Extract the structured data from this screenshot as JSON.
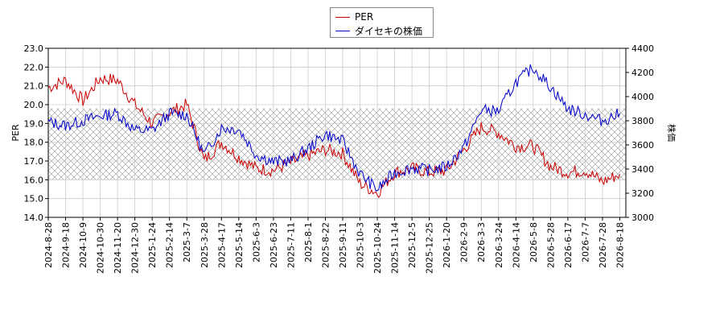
{
  "chart_data": {
    "type": "line",
    "title": "",
    "legend": {
      "placement": "top-center",
      "entries": [
        "PER",
        "ダイセキの株価"
      ]
    },
    "ylabel_left": "PER",
    "ylabel_right": "株価",
    "ylim_left": [
      14.0,
      23.0
    ],
    "ylim_right": [
      3000,
      4400
    ],
    "yticks_left": [
      "14.0",
      "15.0",
      "16.0",
      "17.0",
      "18.0",
      "19.0",
      "20.0",
      "21.0",
      "22.0",
      "23.0"
    ],
    "yticks_right": [
      "3000",
      "3200",
      "3400",
      "3600",
      "3800",
      "4000",
      "4200",
      "4400"
    ],
    "grid": true,
    "hatched_band_left": [
      16.0,
      19.8
    ],
    "xticks": [
      "2024-8-28",
      "2024-9-18",
      "2024-10-9",
      "2024-10-30",
      "2024-11-20",
      "2024-12-30",
      "2025-1-24",
      "2025-2-14",
      "2025-3-7",
      "2025-3-28",
      "2025-4-17",
      "2025-5-14",
      "2025-6-3",
      "2025-6-23",
      "2025-7-11",
      "2025-8-1",
      "2025-8-22",
      "2025-9-11",
      "2025-10-3",
      "2025-10-24",
      "2025-11-14",
      "2025-12-5",
      "2025-12-25",
      "2026-1-20",
      "2026-2-9",
      "2026-3-3",
      "2026-3-24",
      "2026-4-14",
      "2026-5-8",
      "2026-5-28",
      "2026-6-17",
      "2026-7-7",
      "2026-7-28",
      "2026-8-18"
    ],
    "series": [
      {
        "name": "PER",
        "color": "#cc0000",
        "axis": "left",
        "x": [
          "2024-8-28",
          "2024-9-18",
          "2024-10-9",
          "2024-10-30",
          "2024-11-20",
          "2024-12-30",
          "2025-1-24",
          "2025-2-14",
          "2025-3-7",
          "2025-3-28",
          "2025-4-17",
          "2025-5-14",
          "2025-6-3",
          "2025-6-23",
          "2025-7-11",
          "2025-8-1",
          "2025-8-22",
          "2025-9-11",
          "2025-10-3",
          "2025-10-24",
          "2025-11-14",
          "2025-12-5",
          "2025-12-25",
          "2026-1-20",
          "2026-2-9",
          "2026-3-3",
          "2026-3-24",
          "2026-4-14",
          "2026-5-8",
          "2026-5-28",
          "2026-6-17",
          "2026-7-7",
          "2026-7-28",
          "2026-8-18"
        ],
        "values": [
          20.9,
          21.3,
          20.2,
          21.4,
          21.3,
          20.0,
          19.0,
          19.6,
          20.0,
          17.0,
          18.0,
          17.2,
          16.6,
          16.5,
          16.9,
          17.3,
          17.6,
          17.4,
          15.8,
          15.3,
          16.4,
          16.6,
          16.4,
          16.5,
          17.6,
          18.8,
          18.5,
          17.8,
          17.8,
          16.7,
          16.4,
          16.5,
          15.9,
          16.3
        ]
      },
      {
        "name": "ダイセキの株価",
        "color": "#0000cc",
        "axis": "right",
        "x": [
          "2024-8-28",
          "2024-9-18",
          "2024-10-9",
          "2024-10-30",
          "2024-11-20",
          "2024-12-30",
          "2025-1-24",
          "2025-2-14",
          "2025-3-7",
          "2025-3-28",
          "2025-4-17",
          "2025-5-14",
          "2025-6-3",
          "2025-6-23",
          "2025-7-11",
          "2025-8-1",
          "2025-8-22",
          "2025-9-11",
          "2025-10-3",
          "2025-10-24",
          "2025-11-14",
          "2025-12-5",
          "2025-12-25",
          "2026-1-20",
          "2026-2-9",
          "2026-3-3",
          "2026-3-24",
          "2026-4-14",
          "2026-5-8",
          "2026-5-28",
          "2026-6-17",
          "2026-7-7",
          "2026-7-28",
          "2026-8-18"
        ],
        "values": [
          3790,
          3760,
          3800,
          3840,
          3860,
          3720,
          3720,
          3860,
          3850,
          3520,
          3740,
          3730,
          3520,
          3460,
          3470,
          3570,
          3690,
          3630,
          3360,
          3230,
          3370,
          3410,
          3390,
          3420,
          3580,
          3890,
          3880,
          4120,
          4240,
          4080,
          3900,
          3850,
          3800,
          3860
        ]
      }
    ]
  }
}
